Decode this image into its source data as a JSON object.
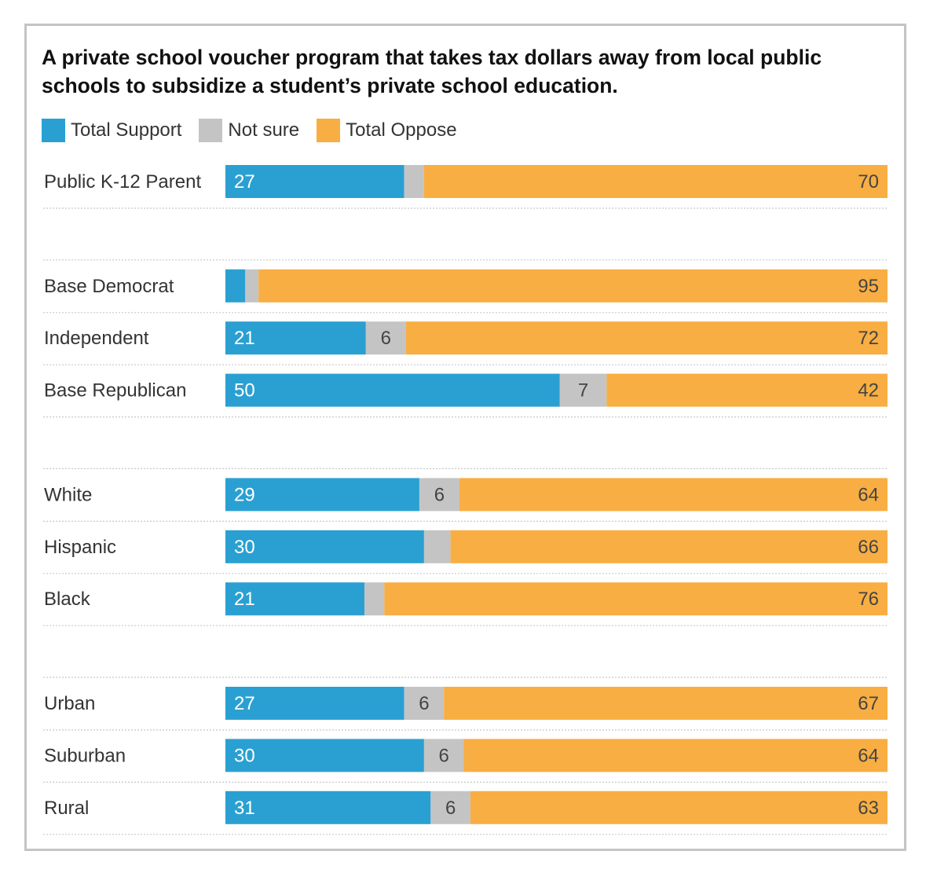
{
  "chart_data": {
    "type": "bar",
    "stacked": true,
    "orientation": "horizontal",
    "title": "A private school voucher program that takes tax dollars away from local public schools to subsidize a student’s private school education.",
    "xlim": [
      0,
      100
    ],
    "legend": {
      "placement": "top-left",
      "items": [
        {
          "name": "Total Support",
          "color": "#2aa0d2"
        },
        {
          "name": "Not sure",
          "color": "#c4c4c4"
        },
        {
          "name": "Total Oppose",
          "color": "#f8ae42"
        }
      ]
    },
    "groups": [
      [
        {
          "category": "Public K-12 Parent",
          "support": 27,
          "notsure": 3,
          "oppose": 70,
          "support_label": "27",
          "notsure_label": "",
          "oppose_label": "70"
        }
      ],
      [
        {
          "category": "Base Democrat",
          "support": 3,
          "notsure": 2,
          "oppose": 95,
          "support_label": "",
          "notsure_label": "",
          "oppose_label": "95"
        },
        {
          "category": "Independent",
          "support": 21,
          "notsure": 6,
          "oppose": 72,
          "support_label": "21",
          "notsure_label": "6",
          "oppose_label": "72"
        },
        {
          "category": "Base Republican",
          "support": 50,
          "notsure": 7,
          "oppose": 42,
          "support_label": "50",
          "notsure_label": "7",
          "oppose_label": "42"
        }
      ],
      [
        {
          "category": "White",
          "support": 29,
          "notsure": 6,
          "oppose": 64,
          "support_label": "29",
          "notsure_label": "6",
          "oppose_label": "64"
        },
        {
          "category": "Hispanic",
          "support": 30,
          "notsure": 4,
          "oppose": 66,
          "support_label": "30",
          "notsure_label": "",
          "oppose_label": "66"
        },
        {
          "category": "Black",
          "support": 21,
          "notsure": 3,
          "oppose": 76,
          "support_label": "21",
          "notsure_label": "",
          "oppose_label": "76"
        }
      ],
      [
        {
          "category": "Urban",
          "support": 27,
          "notsure": 6,
          "oppose": 67,
          "support_label": "27",
          "notsure_label": "6",
          "oppose_label": "67"
        },
        {
          "category": "Suburban",
          "support": 30,
          "notsure": 6,
          "oppose": 64,
          "support_label": "30",
          "notsure_label": "6",
          "oppose_label": "64"
        },
        {
          "category": "Rural",
          "support": 31,
          "notsure": 6,
          "oppose": 63,
          "support_label": "31",
          "notsure_label": "6",
          "oppose_label": "63"
        }
      ]
    ]
  }
}
